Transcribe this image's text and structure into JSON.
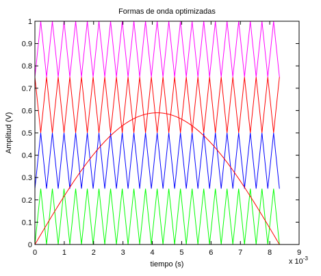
{
  "chart_data": {
    "type": "line",
    "title": "Formas de onda optimizadas",
    "xlabel": "tiempo (s)",
    "ylabel": "Amplitud (V)",
    "x_exponent": "x 10",
    "x_exponent_power": "-3",
    "xlim": [
      0,
      0.009
    ],
    "ylim": [
      0,
      1
    ],
    "xticks": [
      0,
      1,
      2,
      3,
      4,
      5,
      6,
      7,
      8,
      9
    ],
    "xtick_labels": [
      "0",
      "1",
      "2",
      "3",
      "4",
      "5",
      "6",
      "7",
      "8",
      "9"
    ],
    "yticks": [
      0,
      0.1,
      0.2,
      0.3,
      0.4,
      0.5,
      0.6,
      0.7,
      0.8,
      0.9,
      1
    ],
    "ytick_labels": [
      "0",
      "0.1",
      "0.2",
      "0.3",
      "0.4",
      "0.5",
      "0.6",
      "0.7",
      "0.8",
      "0.9",
      "1"
    ],
    "grid": false,
    "series": [
      {
        "kind": "triangle",
        "color": "#00ff00",
        "ymin": 0,
        "ymax": 0.25,
        "periods": 21,
        "x_start": 0,
        "x_end": 0.00833,
        "phase": 0
      },
      {
        "kind": "triangle",
        "color": "#0000ff",
        "ymin": 0.25,
        "ymax": 0.5,
        "periods": 21,
        "x_start": 0,
        "x_end": 0.00833,
        "phase": 0
      },
      {
        "kind": "triangle",
        "color": "#ff0000",
        "ymin": 0.5,
        "ymax": 0.75,
        "periods": 21,
        "x_start": 0,
        "x_end": 0.00833,
        "phase": 0.5
      },
      {
        "kind": "triangle",
        "color": "#ff00ff",
        "ymin": 0.75,
        "ymax": 1,
        "periods": 21,
        "x_start": 0,
        "x_end": 0.00833,
        "phase": 0
      },
      {
        "kind": "sine",
        "color": "#ff0000",
        "amplitude": 0.59,
        "x_start": 0,
        "x_end": 0.00833,
        "peak_x": 0.00415
      }
    ]
  }
}
